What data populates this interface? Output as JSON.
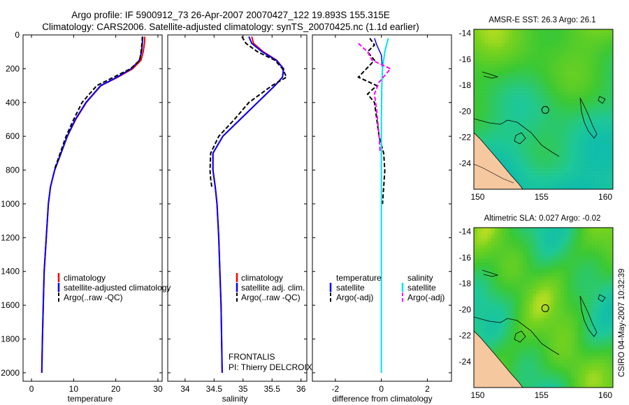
{
  "header": {
    "line1": "Argo profile: IF 5900912_73 26-Apr-2007 20070427_122 19.893S 155.315E",
    "line2": "Climatology: CARS2006. Satellite-adjusted climatology: synTS_20070425.nc (1.1d earlier)"
  },
  "side_label": "CSIRO 04-May-2007 10:32:39",
  "float_info": {
    "project": "FRONTALIS",
    "pi": "PI: Thierry DELCROIX"
  },
  "colors": {
    "climatology": "#ff0000",
    "satellite": "#0000ff",
    "argo": "#000000",
    "sal_satellite": "#00e5ee",
    "sal_argo": "#ff00ff",
    "land": "#f5c8a0"
  },
  "chart_data": [
    {
      "type": "line",
      "id": "temperature",
      "xlabel": "temperature",
      "ylabel": "",
      "xlim": [
        -2,
        31
      ],
      "ylim": [
        0,
        2050
      ],
      "y_reversed": true,
      "xticks": [
        0,
        10,
        20,
        30
      ],
      "yticks": [
        0,
        200,
        400,
        600,
        800,
        1000,
        1200,
        1400,
        1600,
        1800,
        2000
      ],
      "legend": [
        "climatology",
        "satellite-adjusted climatology",
        "Argo(..raw -QC)"
      ],
      "series": [
        {
          "name": "climatology",
          "x": [
            26.9,
            26.8,
            26.5,
            26.0,
            24.0,
            20.5,
            16.5,
            13.0,
            10.5,
            8.5,
            7.0,
            5.5,
            4.5,
            4.0,
            3.5,
            3.0,
            2.8,
            2.6,
            2.45
          ],
          "y": [
            10,
            50,
            100,
            150,
            200,
            250,
            300,
            400,
            500,
            600,
            700,
            800,
            900,
            1000,
            1200,
            1400,
            1600,
            1800,
            2000
          ]
        },
        {
          "name": "satellite-adjusted climatology",
          "x": [
            26.4,
            26.3,
            26.1,
            25.6,
            23.7,
            20.3,
            16.4,
            12.9,
            10.4,
            8.5,
            7.0,
            5.5,
            4.5,
            4.0,
            3.5,
            3.0,
            2.8,
            2.6,
            2.45
          ],
          "y": [
            10,
            50,
            100,
            150,
            200,
            250,
            300,
            400,
            500,
            600,
            700,
            800,
            900,
            1000,
            1200,
            1400,
            1600,
            1800,
            2000
          ]
        },
        {
          "name": "Argo(..raw -QC)",
          "x": [
            26.3,
            26.2,
            26.0,
            25.7,
            23.5,
            19.5,
            15.5,
            12.0,
            10.0,
            8.2,
            6.8,
            5.4
          ],
          "y": [
            10,
            50,
            100,
            150,
            200,
            250,
            300,
            400,
            500,
            600,
            700,
            800
          ]
        }
      ]
    },
    {
      "type": "line",
      "id": "salinity",
      "xlabel": "salinity",
      "ylabel": "",
      "xlim": [
        33.7,
        36.1
      ],
      "ylim": [
        0,
        2050
      ],
      "y_reversed": true,
      "xticks": [
        34,
        34.5,
        35,
        35.5,
        36
      ],
      "yticks": [],
      "legend": [
        "climatology",
        "satellite adj. clim.",
        "Argo(..raw -QC)"
      ],
      "series": [
        {
          "name": "climatology",
          "x": [
            35.15,
            35.18,
            35.35,
            35.58,
            35.7,
            35.68,
            35.55,
            35.25,
            34.95,
            34.65,
            34.48,
            34.48,
            34.52,
            34.55,
            34.58,
            34.6,
            34.62,
            34.63,
            34.64
          ],
          "y": [
            10,
            50,
            100,
            150,
            200,
            250,
            300,
            400,
            500,
            600,
            700,
            800,
            900,
            1000,
            1200,
            1400,
            1600,
            1800,
            2000
          ]
        },
        {
          "name": "satellite adj. clim.",
          "x": [
            35.1,
            35.15,
            35.33,
            35.57,
            35.7,
            35.68,
            35.55,
            35.25,
            34.95,
            34.65,
            34.48,
            34.48,
            34.52,
            34.55,
            34.58,
            34.6,
            34.62,
            34.63,
            34.64
          ],
          "y": [
            10,
            50,
            100,
            150,
            200,
            250,
            300,
            400,
            500,
            600,
            700,
            800,
            900,
            1000,
            1200,
            1400,
            1600,
            1800,
            2000
          ]
        },
        {
          "name": "Argo(..raw -QC)",
          "x": [
            34.98,
            35.05,
            35.25,
            35.55,
            35.68,
            35.75,
            35.5,
            35.1,
            34.85,
            34.58,
            34.44,
            34.43,
            34.44,
            34.46
          ],
          "y": [
            10,
            50,
            100,
            150,
            200,
            250,
            300,
            400,
            500,
            600,
            700,
            800,
            850,
            900
          ]
        }
      ]
    },
    {
      "type": "line",
      "id": "difference",
      "xlabel": "difference from climatology",
      "ylabel": "",
      "xlim": [
        -3,
        3.05
      ],
      "ylim": [
        0,
        2050
      ],
      "y_reversed": true,
      "xticks": [
        -2,
        0,
        2
      ],
      "yticks": [],
      "legend_columns": [
        "temperature",
        "salinity"
      ],
      "legend": [
        "satellite",
        "Argo(-adj)",
        "satellite",
        "Argo(-adj)"
      ],
      "series": [
        {
          "name": "temperature satellite",
          "x": [
            -0.3,
            -0.2,
            0.0,
            0.05,
            0.02,
            0,
            0,
            0
          ],
          "y": [
            20,
            60,
            120,
            200,
            300,
            500,
            1000,
            2000
          ]
        },
        {
          "name": "temperature Argo(-adj)",
          "x": [
            -0.5,
            -0.3,
            -0.6,
            -0.3,
            -1.0,
            -0.2,
            -0.6,
            -0.3,
            -0.2,
            -0.1,
            0.1,
            0.15,
            0.1,
            0.05
          ],
          "y": [
            20,
            60,
            100,
            150,
            250,
            300,
            350,
            400,
            500,
            600,
            700,
            800,
            900,
            1000
          ]
        },
        {
          "name": "salinity satellite",
          "x": [
            0.3,
            0.15,
            0.05,
            0.02,
            0,
            0,
            0
          ],
          "y": [
            20,
            100,
            200,
            300,
            500,
            1000,
            2000
          ]
        },
        {
          "name": "salinity Argo(-adj)",
          "x": [
            -1.0,
            -0.6,
            -0.4,
            0.4,
            -0.1,
            -0.3,
            -0.2,
            -0.1,
            -0.05
          ],
          "y": [
            50,
            100,
            150,
            200,
            280,
            350,
            450,
            600,
            700
          ]
        }
      ]
    },
    {
      "type": "heatmap",
      "id": "sst_map",
      "title": "AMSR-E SST: 26.3 Argo: 26.1",
      "xlim": [
        149.7,
        160.6
      ],
      "ylim": [
        -26,
        -13.7
      ],
      "xticks": [
        150,
        155,
        160
      ],
      "yticks": [
        -14,
        -16,
        -18,
        -20,
        -22,
        -24
      ],
      "marker": {
        "lon": 155.3,
        "lat": -19.9
      }
    },
    {
      "type": "heatmap",
      "id": "sla_map",
      "title": "Altimetric SLA: 0.027 Argo: -0.02",
      "xlim": [
        149.7,
        160.6
      ],
      "ylim": [
        -26,
        -13.7
      ],
      "xticks": [
        150,
        155,
        160
      ],
      "yticks": [
        -14,
        -16,
        -18,
        -20,
        -22,
        -24
      ],
      "marker": {
        "lon": 155.3,
        "lat": -19.9
      }
    }
  ]
}
